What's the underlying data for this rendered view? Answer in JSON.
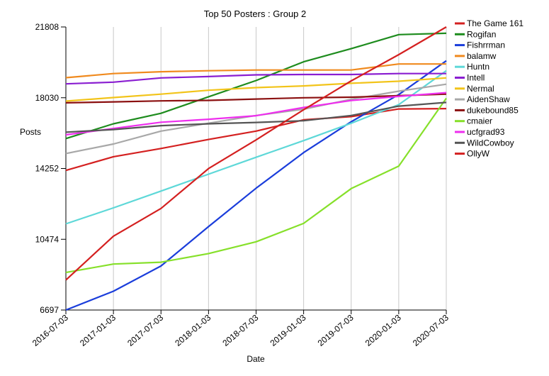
{
  "chart_data": {
    "type": "line",
    "title": "Top 50 Posters : Group 2",
    "xlabel": "Date",
    "ylabel": "Posts",
    "x": [
      "2016-07-03",
      "2017-01-03",
      "2017-07-03",
      "2018-01-03",
      "2018-07-03",
      "2019-01-03",
      "2019-07-03",
      "2020-01-03",
      "2020-07-03"
    ],
    "ylim": [
      6697,
      21808
    ],
    "yticks": [
      6697,
      10474,
      14252,
      18030,
      21808
    ],
    "grid": "vertical",
    "legend_position": "right",
    "series": [
      {
        "name": "The Game 161",
        "color": "#d42020",
        "values": [
          14150,
          14880,
          15320,
          15800,
          16250,
          16850,
          17020,
          17430,
          17450
        ]
      },
      {
        "name": "Rogifan",
        "color": "#1e8c1e",
        "values": [
          15850,
          16640,
          17200,
          18080,
          18950,
          19950,
          20650,
          21400,
          21470
        ]
      },
      {
        "name": "Fishrrman",
        "color": "#1a3ddb",
        "values": [
          6697,
          7700,
          9050,
          11150,
          13200,
          15100,
          16750,
          18200,
          20000
        ]
      },
      {
        "name": "balamw",
        "color": "#f08a1e",
        "values": [
          19100,
          19320,
          19420,
          19470,
          19510,
          19510,
          19510,
          19830,
          19830
        ]
      },
      {
        "name": "Huntn",
        "color": "#5ed8d8",
        "values": [
          11300,
          12150,
          13050,
          13950,
          14850,
          15740,
          16670,
          17660,
          19470
        ]
      },
      {
        "name": "Intell",
        "color": "#8a1ed1",
        "values": [
          18770,
          18860,
          19090,
          19160,
          19250,
          19270,
          19270,
          19320,
          19320
        ]
      },
      {
        "name": "Nermal",
        "color": "#f2c41a",
        "values": [
          17850,
          18040,
          18220,
          18430,
          18570,
          18660,
          18800,
          18910,
          19090
        ]
      },
      {
        "name": "AidenShaw",
        "color": "#a8a8a8",
        "values": [
          15050,
          15560,
          16250,
          16670,
          17080,
          17420,
          17950,
          18380,
          18750
        ]
      },
      {
        "name": "dukebound85",
        "color": "#8b1010",
        "values": [
          17760,
          17810,
          17860,
          17890,
          17960,
          18030,
          18060,
          18140,
          18220
        ]
      },
      {
        "name": "cmaier",
        "color": "#86e02a",
        "values": [
          8700,
          9150,
          9250,
          9710,
          10340,
          11320,
          13180,
          14380,
          18000
        ]
      },
      {
        "name": "ucfgrad93",
        "color": "#ee2eee",
        "values": [
          16050,
          16390,
          16720,
          16880,
          17070,
          17510,
          17880,
          18100,
          18300
        ]
      },
      {
        "name": "WildCowboy",
        "color": "#555555",
        "values": [
          16190,
          16330,
          16540,
          16640,
          16710,
          16800,
          17080,
          17580,
          17780
        ]
      },
      {
        "name": "OllyW",
        "color": "#d42020",
        "values": [
          8300,
          10640,
          12120,
          14250,
          15780,
          17390,
          18930,
          20330,
          21808
        ]
      }
    ]
  }
}
